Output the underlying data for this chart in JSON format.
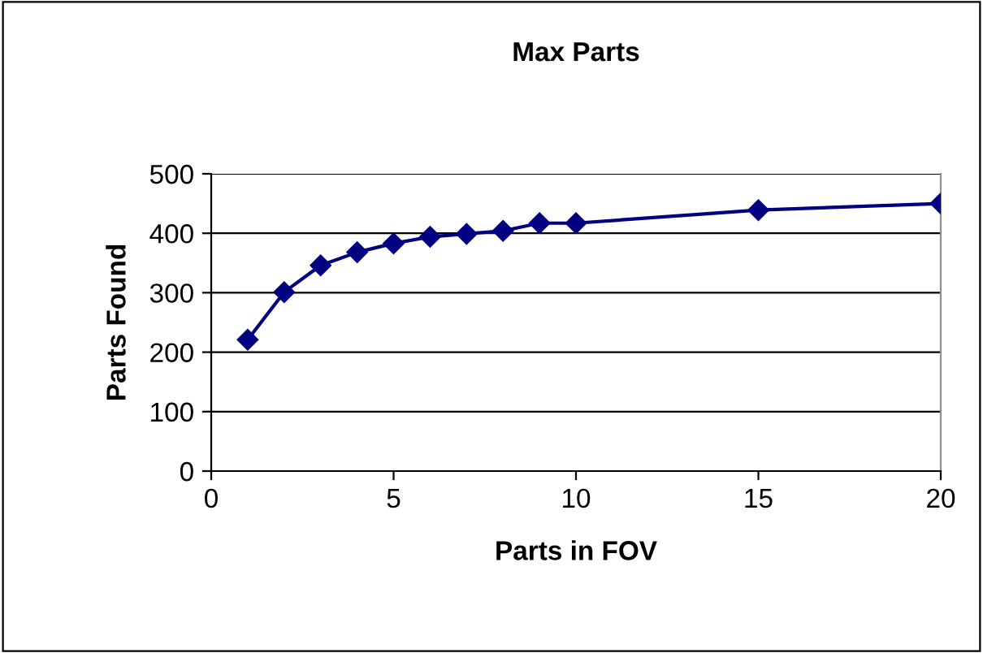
{
  "chart_data": {
    "type": "line",
    "title": "Max Parts",
    "xlabel": "Parts in FOV",
    "ylabel": "Parts Found",
    "x": [
      1,
      2,
      3,
      4,
      5,
      6,
      7,
      8,
      9,
      10,
      15,
      20
    ],
    "series": [
      {
        "color": "#000080",
        "values": [
          221,
          301,
          346,
          368,
          383,
          394,
          399,
          404,
          417,
          417,
          439,
          450
        ]
      }
    ],
    "xlim": [
      0,
      20
    ],
    "xticks": [
      0,
      5,
      10,
      15,
      20
    ],
    "ylim": [
      0,
      500
    ],
    "yticks": [
      0,
      100,
      200,
      300,
      400,
      500
    ],
    "grid": "y",
    "marker": "diamond",
    "line_style": "solid"
  }
}
